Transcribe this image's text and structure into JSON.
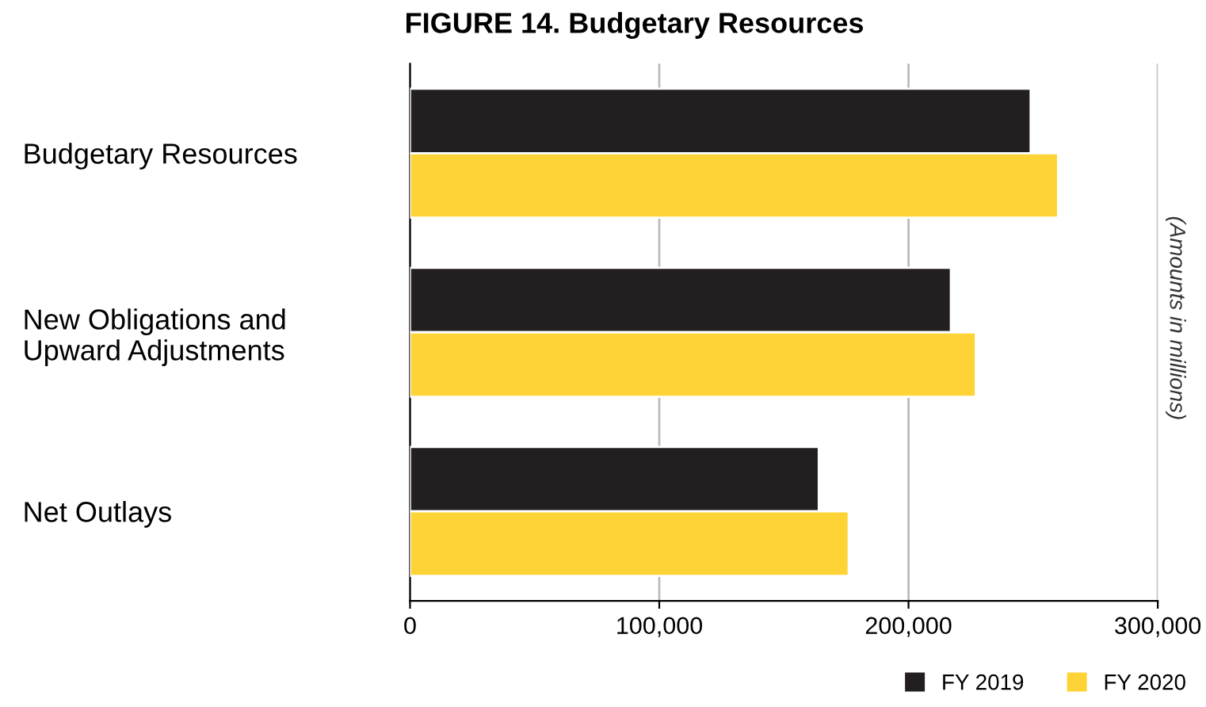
{
  "chart_data": {
    "type": "bar",
    "orientation": "horizontal",
    "title": "FIGURE 14. Budgetary Resources",
    "categories": [
      "Budgetary Resources",
      "New Obligations and\nUpward Adjustments",
      "Net Outlays"
    ],
    "series": [
      {
        "name": "FY 2019",
        "color": "#231f20",
        "values": [
          249000,
          217000,
          164000
        ]
      },
      {
        "name": "FY 2020",
        "color": "#fdd335",
        "values": [
          260000,
          227000,
          176000
        ]
      }
    ],
    "xlim": [
      0,
      300000
    ],
    "xticks": [
      {
        "value": 0,
        "label": "0"
      },
      {
        "value": 100000,
        "label": "100,000"
      },
      {
        "value": 200000,
        "label": "200,000"
      },
      {
        "value": 300000,
        "label": "300,000"
      }
    ],
    "grid": "x",
    "legend": "bottom right",
    "annotations": [
      "(Amounts in millions)"
    ]
  }
}
